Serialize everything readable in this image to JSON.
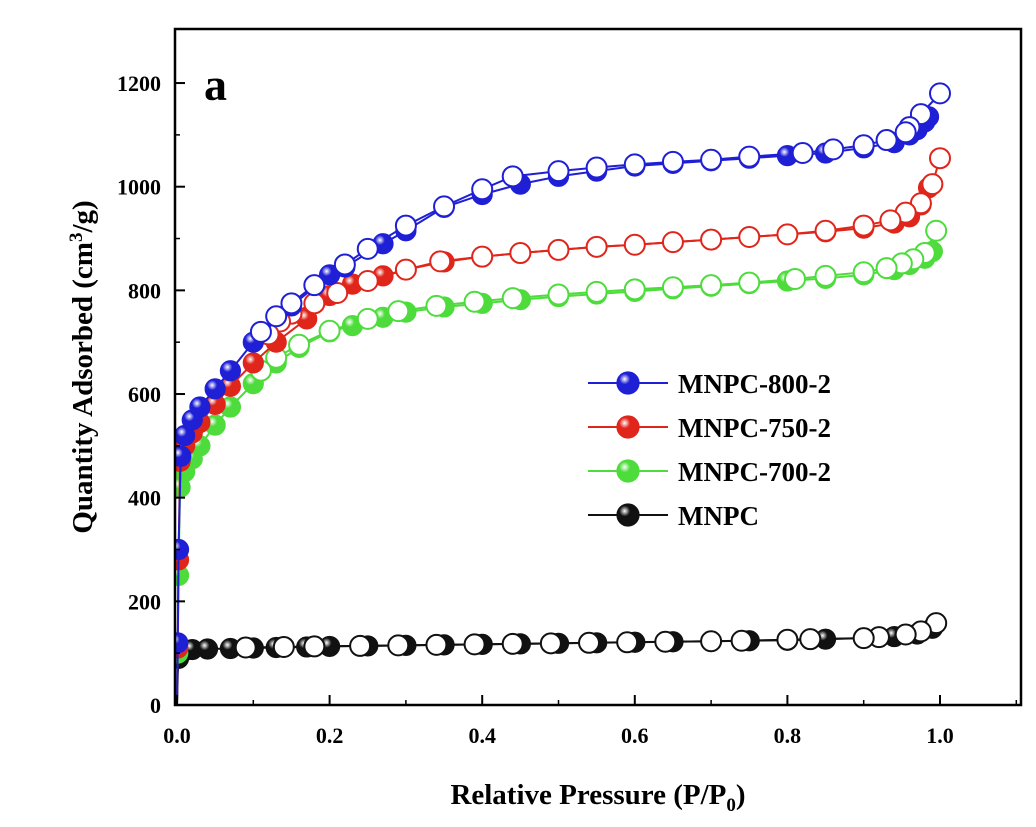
{
  "chart_data": {
    "type": "scatter",
    "panel_label": "a",
    "xlabel_main": "Relative Pressure (P/P",
    "xlabel_sub": "0",
    "xlabel_end": ")",
    "ylabel_main": "Quantity Adsorbed (cm",
    "ylabel_sup": "3",
    "ylabel_end": "/g)",
    "xlim": [
      0.0,
      1.1
    ],
    "ylim": [
      0,
      1300
    ],
    "xticks": [
      0.0,
      0.2,
      0.4,
      0.6,
      0.8,
      1.0
    ],
    "xtick_labels": [
      "0.0",
      "0.2",
      "0.4",
      "0.6",
      "0.8",
      "1.0"
    ],
    "yticks": [
      0,
      200,
      400,
      600,
      800,
      1000,
      1200
    ],
    "ytick_labels": [
      "0",
      "200",
      "400",
      "600",
      "800",
      "1000",
      "1200"
    ],
    "grid": false,
    "legend_position": "center-right",
    "series": [
      {
        "name": "MNPC-800-2",
        "color": "#1f1fd6",
        "adsorption": [
          [
            0.0,
            0
          ],
          [
            0.001,
            120
          ],
          [
            0.002,
            300
          ],
          [
            0.005,
            480
          ],
          [
            0.01,
            520
          ],
          [
            0.02,
            550
          ],
          [
            0.03,
            575
          ],
          [
            0.05,
            610
          ],
          [
            0.07,
            645
          ],
          [
            0.1,
            700
          ],
          [
            0.15,
            770
          ],
          [
            0.2,
            830
          ],
          [
            0.22,
            845
          ],
          [
            0.27,
            890
          ],
          [
            0.3,
            915
          ],
          [
            0.35,
            960
          ],
          [
            0.4,
            985
          ],
          [
            0.45,
            1005
          ],
          [
            0.5,
            1020
          ],
          [
            0.55,
            1030
          ],
          [
            0.6,
            1040
          ],
          [
            0.65,
            1045
          ],
          [
            0.7,
            1050
          ],
          [
            0.75,
            1055
          ],
          [
            0.8,
            1060
          ],
          [
            0.85,
            1065
          ],
          [
            0.9,
            1075
          ],
          [
            0.94,
            1085
          ],
          [
            0.96,
            1100
          ],
          [
            0.97,
            1110
          ],
          [
            0.98,
            1125
          ],
          [
            0.985,
            1135
          ]
        ],
        "desorption": [
          [
            1.0,
            1180
          ],
          [
            0.975,
            1140
          ],
          [
            0.96,
            1115
          ],
          [
            0.955,
            1105
          ],
          [
            0.93,
            1090
          ],
          [
            0.9,
            1080
          ],
          [
            0.86,
            1072
          ],
          [
            0.82,
            1065
          ],
          [
            0.75,
            1058
          ],
          [
            0.7,
            1052
          ],
          [
            0.65,
            1048
          ],
          [
            0.6,
            1043
          ],
          [
            0.55,
            1037
          ],
          [
            0.5,
            1030
          ],
          [
            0.44,
            1020
          ],
          [
            0.4,
            995
          ],
          [
            0.35,
            962
          ],
          [
            0.3,
            925
          ],
          [
            0.25,
            880
          ],
          [
            0.22,
            850
          ],
          [
            0.18,
            810
          ],
          [
            0.15,
            775
          ],
          [
            0.13,
            750
          ],
          [
            0.11,
            720
          ]
        ]
      },
      {
        "name": "MNPC-750-2",
        "color": "#e0251b",
        "adsorption": [
          [
            0.0,
            0
          ],
          [
            0.001,
            110
          ],
          [
            0.002,
            280
          ],
          [
            0.004,
            470
          ],
          [
            0.01,
            500
          ],
          [
            0.02,
            525
          ],
          [
            0.03,
            545
          ],
          [
            0.05,
            580
          ],
          [
            0.07,
            615
          ],
          [
            0.1,
            660
          ],
          [
            0.13,
            700
          ],
          [
            0.17,
            745
          ],
          [
            0.2,
            790
          ],
          [
            0.23,
            812
          ],
          [
            0.27,
            828
          ],
          [
            0.3,
            840
          ],
          [
            0.35,
            855
          ],
          [
            0.4,
            865
          ],
          [
            0.45,
            872
          ],
          [
            0.5,
            878
          ],
          [
            0.55,
            884
          ],
          [
            0.6,
            888
          ],
          [
            0.65,
            893
          ],
          [
            0.7,
            898
          ],
          [
            0.75,
            903
          ],
          [
            0.8,
            908
          ],
          [
            0.85,
            913
          ],
          [
            0.9,
            920
          ],
          [
            0.94,
            930
          ],
          [
            0.96,
            942
          ],
          [
            0.975,
            965
          ],
          [
            0.985,
            998
          ],
          [
            0.99,
            1005
          ]
        ],
        "desorption": [
          [
            1.0,
            1055
          ],
          [
            0.99,
            1005
          ],
          [
            0.975,
            968
          ],
          [
            0.955,
            950
          ],
          [
            0.935,
            935
          ],
          [
            0.9,
            925
          ],
          [
            0.85,
            915
          ],
          [
            0.8,
            908
          ],
          [
            0.75,
            903
          ],
          [
            0.7,
            898
          ],
          [
            0.65,
            893
          ],
          [
            0.6,
            888
          ],
          [
            0.55,
            884
          ],
          [
            0.5,
            878
          ],
          [
            0.45,
            872
          ],
          [
            0.4,
            865
          ],
          [
            0.345,
            856
          ],
          [
            0.3,
            840
          ],
          [
            0.25,
            818
          ],
          [
            0.21,
            795
          ],
          [
            0.18,
            775
          ],
          [
            0.15,
            755
          ],
          [
            0.135,
            740
          ],
          [
            0.12,
            715
          ]
        ]
      },
      {
        "name": "MNPC-700-2",
        "color": "#4ddc3c",
        "adsorption": [
          [
            0.0,
            0
          ],
          [
            0.001,
            100
          ],
          [
            0.002,
            250
          ],
          [
            0.004,
            420
          ],
          [
            0.01,
            450
          ],
          [
            0.02,
            475
          ],
          [
            0.03,
            500
          ],
          [
            0.05,
            540
          ],
          [
            0.07,
            575
          ],
          [
            0.1,
            620
          ],
          [
            0.13,
            660
          ],
          [
            0.16,
            690
          ],
          [
            0.2,
            720
          ],
          [
            0.23,
            732
          ],
          [
            0.27,
            748
          ],
          [
            0.3,
            758
          ],
          [
            0.35,
            768
          ],
          [
            0.4,
            775
          ],
          [
            0.45,
            782
          ],
          [
            0.5,
            788
          ],
          [
            0.55,
            793
          ],
          [
            0.6,
            798
          ],
          [
            0.65,
            803
          ],
          [
            0.7,
            808
          ],
          [
            0.75,
            813
          ],
          [
            0.8,
            818
          ],
          [
            0.85,
            823
          ],
          [
            0.9,
            830
          ],
          [
            0.94,
            840
          ],
          [
            0.96,
            850
          ],
          [
            0.98,
            862
          ],
          [
            0.99,
            875
          ]
        ],
        "desorption": [
          [
            0.995,
            915
          ],
          [
            0.98,
            872
          ],
          [
            0.965,
            860
          ],
          [
            0.95,
            852
          ],
          [
            0.93,
            843
          ],
          [
            0.9,
            835
          ],
          [
            0.85,
            828
          ],
          [
            0.81,
            822
          ],
          [
            0.75,
            815
          ],
          [
            0.7,
            810
          ],
          [
            0.65,
            806
          ],
          [
            0.6,
            802
          ],
          [
            0.55,
            797
          ],
          [
            0.5,
            792
          ],
          [
            0.44,
            785
          ],
          [
            0.39,
            778
          ],
          [
            0.34,
            770
          ],
          [
            0.29,
            760
          ],
          [
            0.25,
            745
          ],
          [
            0.2,
            722
          ],
          [
            0.16,
            695
          ],
          [
            0.13,
            670
          ],
          [
            0.11,
            645
          ]
        ]
      },
      {
        "name": "MNPC",
        "color": "#111111",
        "adsorption": [
          [
            0.0,
            0
          ],
          [
            0.0005,
            20
          ],
          [
            0.001,
            60
          ],
          [
            0.002,
            90
          ],
          [
            0.003,
            100
          ],
          [
            0.01,
            105
          ],
          [
            0.02,
            107
          ],
          [
            0.04,
            108
          ],
          [
            0.07,
            109
          ],
          [
            0.1,
            110
          ],
          [
            0.13,
            111
          ],
          [
            0.17,
            112
          ],
          [
            0.2,
            113
          ],
          [
            0.25,
            114
          ],
          [
            0.3,
            115
          ],
          [
            0.35,
            116
          ],
          [
            0.4,
            117
          ],
          [
            0.45,
            118
          ],
          [
            0.5,
            119
          ],
          [
            0.55,
            120
          ],
          [
            0.6,
            121
          ],
          [
            0.65,
            122
          ],
          [
            0.7,
            123
          ],
          [
            0.75,
            124
          ],
          [
            0.8,
            125
          ],
          [
            0.85,
            127
          ],
          [
            0.9,
            129
          ],
          [
            0.94,
            132
          ],
          [
            0.97,
            137
          ],
          [
            0.99,
            148
          ]
        ],
        "desorption": [
          [
            0.995,
            158
          ],
          [
            0.975,
            142
          ],
          [
            0.955,
            136
          ],
          [
            0.92,
            131
          ],
          [
            0.9,
            129
          ],
          [
            0.83,
            127
          ],
          [
            0.8,
            126
          ],
          [
            0.74,
            124
          ],
          [
            0.7,
            123
          ],
          [
            0.64,
            122
          ],
          [
            0.59,
            121
          ],
          [
            0.54,
            120
          ],
          [
            0.49,
            119
          ],
          [
            0.44,
            118
          ],
          [
            0.39,
            117
          ],
          [
            0.34,
            116
          ],
          [
            0.29,
            115
          ],
          [
            0.24,
            114
          ],
          [
            0.18,
            113
          ],
          [
            0.14,
            112
          ],
          [
            0.09,
            111
          ]
        ]
      }
    ]
  }
}
